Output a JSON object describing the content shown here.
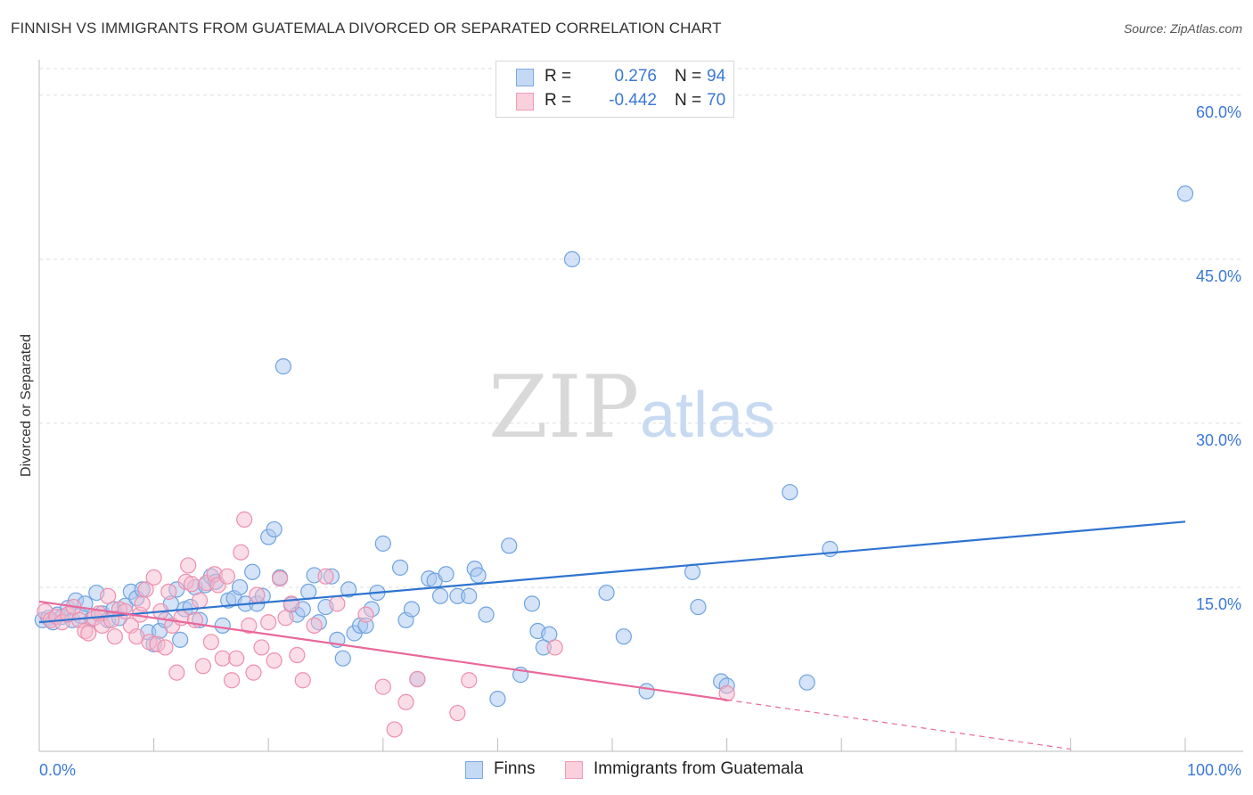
{
  "title": "FINNISH VS IMMIGRANTS FROM GUATEMALA DIVORCED OR SEPARATED CORRELATION CHART",
  "source": "Source: ZipAtlas.com",
  "watermark": {
    "zip": "ZIP",
    "atlas": "atlas"
  },
  "colors": {
    "blue": "#6fa3e0",
    "blue_fill": "#aac8ef",
    "blue_line": "#2f74d0",
    "pink": "#ee8fae",
    "pink_fill": "#f5bccd",
    "pink_line": "#e8689a",
    "axis_text": "#3b78d8",
    "grid": "#dddddd"
  },
  "legend_top": [
    {
      "r_label": "R =",
      "r_value": "0.276",
      "n_label": "N =",
      "n_value": "94"
    },
    {
      "r_label": "R =",
      "r_value": "-0.442",
      "n_label": "N =",
      "n_value": "70"
    }
  ],
  "legend_bottom": [
    "Finns",
    "Immigrants from Guatemala"
  ],
  "chart_data": {
    "type": "scatter",
    "ylabel": "Divorced or Separated",
    "xlim": [
      0,
      100
    ],
    "ylim": [
      0,
      63
    ],
    "x_tick_labels": [
      "0.0%",
      "100.0%"
    ],
    "y_ticks": [
      15,
      30,
      45,
      60
    ],
    "y_tick_labels": [
      "15.0%",
      "30.0%",
      "45.0%",
      "60.0%"
    ],
    "grid": true,
    "legend_position": "top-center",
    "series": [
      {
        "name": "Finns",
        "r": 0.276,
        "n": 94,
        "trend": {
          "x0": 0,
          "y0": 11.8,
          "x1": 100,
          "y1": 21.0
        },
        "points": [
          [
            0.3,
            12.0
          ],
          [
            0.8,
            12.2
          ],
          [
            1.2,
            11.8
          ],
          [
            1.6,
            12.5
          ],
          [
            2.0,
            12.3
          ],
          [
            2.5,
            13.1
          ],
          [
            2.9,
            12.0
          ],
          [
            3.2,
            13.8
          ],
          [
            3.6,
            12.4
          ],
          [
            4.0,
            13.5
          ],
          [
            4.6,
            12.1
          ],
          [
            5.0,
            14.5
          ],
          [
            5.5,
            12.6
          ],
          [
            6.0,
            12.0
          ],
          [
            6.5,
            13.0
          ],
          [
            7.0,
            12.2
          ],
          [
            7.5,
            13.3
          ],
          [
            8.0,
            14.6
          ],
          [
            8.5,
            14.0
          ],
          [
            9.0,
            14.8
          ],
          [
            9.5,
            10.9
          ],
          [
            10.0,
            9.8
          ],
          [
            10.5,
            11.0
          ],
          [
            11.0,
            12.0
          ],
          [
            11.5,
            13.5
          ],
          [
            12.0,
            14.8
          ],
          [
            12.3,
            10.2
          ],
          [
            12.7,
            13.0
          ],
          [
            13.2,
            13.2
          ],
          [
            13.6,
            15.0
          ],
          [
            14.0,
            12.0
          ],
          [
            14.5,
            15.2
          ],
          [
            15.0,
            16.0
          ],
          [
            15.4,
            15.5
          ],
          [
            16.0,
            11.5
          ],
          [
            16.5,
            13.8
          ],
          [
            17.0,
            14.0
          ],
          [
            17.5,
            15.0
          ],
          [
            18.0,
            13.5
          ],
          [
            18.6,
            16.4
          ],
          [
            19.0,
            13.5
          ],
          [
            19.5,
            14.2
          ],
          [
            20.0,
            19.6
          ],
          [
            20.5,
            20.3
          ],
          [
            21.0,
            15.9
          ],
          [
            21.3,
            35.2
          ],
          [
            22.0,
            13.4
          ],
          [
            22.5,
            12.5
          ],
          [
            23.0,
            13.0
          ],
          [
            23.5,
            14.6
          ],
          [
            24.0,
            16.1
          ],
          [
            24.4,
            11.8
          ],
          [
            25.0,
            13.2
          ],
          [
            25.5,
            16.0
          ],
          [
            26.0,
            10.2
          ],
          [
            26.5,
            8.5
          ],
          [
            27.0,
            14.8
          ],
          [
            27.5,
            10.8
          ],
          [
            28.0,
            11.5
          ],
          [
            28.5,
            11.5
          ],
          [
            29.0,
            13.0
          ],
          [
            29.5,
            14.5
          ],
          [
            30.0,
            19.0
          ],
          [
            31.5,
            16.8
          ],
          [
            32.0,
            12.0
          ],
          [
            32.5,
            13.0
          ],
          [
            33.0,
            6.6
          ],
          [
            34.0,
            15.8
          ],
          [
            34.5,
            15.6
          ],
          [
            35.0,
            14.2
          ],
          [
            35.5,
            16.2
          ],
          [
            36.5,
            14.2
          ],
          [
            37.5,
            14.2
          ],
          [
            38.0,
            16.7
          ],
          [
            38.3,
            16.1
          ],
          [
            39.0,
            12.5
          ],
          [
            40.0,
            4.8
          ],
          [
            41.0,
            18.8
          ],
          [
            42.0,
            7.0
          ],
          [
            43.0,
            13.5
          ],
          [
            43.5,
            11.0
          ],
          [
            44.0,
            9.5
          ],
          [
            44.5,
            10.7
          ],
          [
            46.5,
            45.0
          ],
          [
            49.5,
            14.5
          ],
          [
            51.0,
            10.5
          ],
          [
            53.0,
            5.5
          ],
          [
            57.0,
            16.4
          ],
          [
            57.5,
            13.2
          ],
          [
            59.5,
            6.4
          ],
          [
            60.0,
            6.0
          ],
          [
            65.5,
            23.7
          ],
          [
            67.0,
            6.3
          ],
          [
            69.0,
            18.5
          ],
          [
            100.0,
            51.0
          ]
        ]
      },
      {
        "name": "Immigrants from Guatemala",
        "r": -0.442,
        "n": 70,
        "trend": {
          "x0": 0,
          "y0": 13.7,
          "x1": 60,
          "y1": 4.7
        },
        "trend_dashed": {
          "x0": 60,
          "y0": 4.7,
          "x1": 90,
          "y1": 0.2
        },
        "points": [
          [
            0.5,
            12.8
          ],
          [
            1.0,
            12.0
          ],
          [
            1.5,
            12.3
          ],
          [
            2.0,
            11.8
          ],
          [
            2.5,
            12.5
          ],
          [
            3.0,
            13.2
          ],
          [
            3.5,
            12.0
          ],
          [
            4.0,
            11.0
          ],
          [
            4.3,
            10.8
          ],
          [
            4.8,
            12.2
          ],
          [
            5.2,
            12.6
          ],
          [
            5.5,
            11.5
          ],
          [
            6.0,
            14.2
          ],
          [
            6.3,
            12.0
          ],
          [
            6.6,
            10.5
          ],
          [
            7.0,
            13.0
          ],
          [
            7.5,
            12.8
          ],
          [
            8.0,
            11.5
          ],
          [
            8.5,
            10.5
          ],
          [
            8.8,
            12.5
          ],
          [
            9.0,
            13.5
          ],
          [
            9.3,
            14.8
          ],
          [
            9.6,
            10.0
          ],
          [
            10.0,
            15.9
          ],
          [
            10.3,
            9.8
          ],
          [
            10.6,
            12.8
          ],
          [
            11.0,
            9.5
          ],
          [
            11.3,
            14.6
          ],
          [
            11.6,
            11.5
          ],
          [
            12.0,
            7.2
          ],
          [
            12.4,
            12.2
          ],
          [
            12.8,
            15.5
          ],
          [
            13.0,
            17.0
          ],
          [
            13.3,
            15.3
          ],
          [
            13.6,
            12.0
          ],
          [
            14.0,
            13.8
          ],
          [
            14.3,
            7.8
          ],
          [
            14.6,
            15.4
          ],
          [
            15.0,
            10.0
          ],
          [
            15.3,
            16.2
          ],
          [
            15.6,
            15.2
          ],
          [
            16.0,
            8.5
          ],
          [
            16.4,
            16.0
          ],
          [
            16.8,
            6.5
          ],
          [
            17.2,
            8.5
          ],
          [
            17.6,
            18.2
          ],
          [
            17.9,
            21.2
          ],
          [
            18.3,
            11.5
          ],
          [
            18.7,
            7.2
          ],
          [
            19.0,
            14.3
          ],
          [
            19.4,
            9.5
          ],
          [
            20.0,
            11.8
          ],
          [
            20.5,
            8.3
          ],
          [
            21.0,
            15.8
          ],
          [
            21.5,
            12.2
          ],
          [
            22.0,
            13.5
          ],
          [
            22.5,
            8.8
          ],
          [
            23.0,
            6.5
          ],
          [
            24.0,
            11.5
          ],
          [
            25.0,
            16.0
          ],
          [
            26.0,
            13.5
          ],
          [
            28.5,
            12.5
          ],
          [
            30.0,
            5.9
          ],
          [
            31.0,
            2.0
          ],
          [
            32.0,
            4.5
          ],
          [
            33.0,
            6.6
          ],
          [
            36.5,
            3.5
          ],
          [
            37.5,
            6.5
          ],
          [
            45.0,
            9.5
          ],
          [
            60.0,
            5.3
          ]
        ]
      }
    ]
  }
}
